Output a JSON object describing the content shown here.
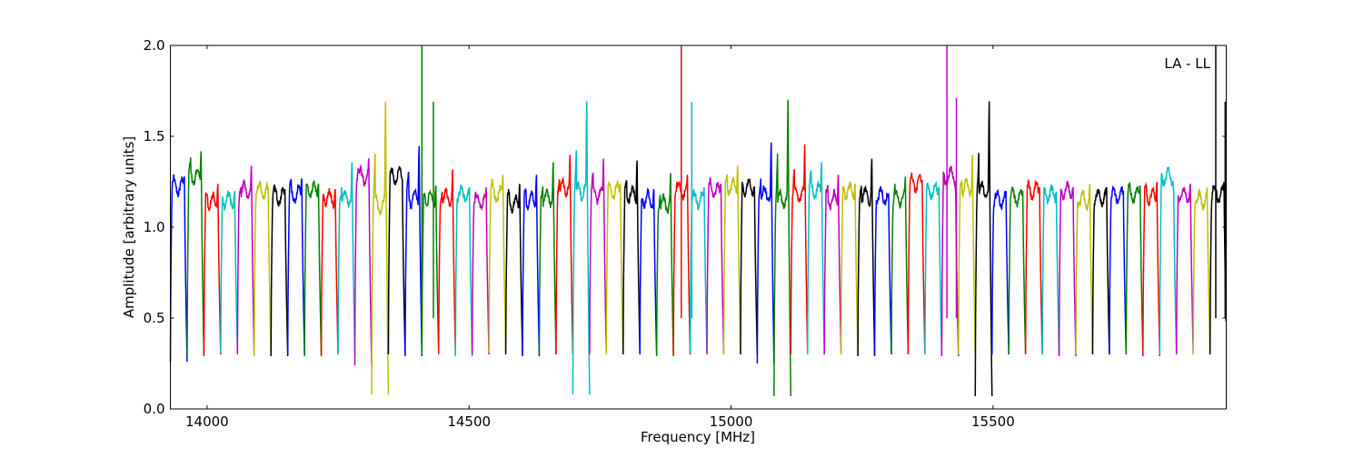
{
  "chart_data": {
    "type": "line",
    "title": "",
    "xlabel": "Frequency [MHz]",
    "ylabel": "Amplitude [arbitrary units]",
    "annotation": "LA - LL",
    "xlim": [
      13930,
      15945
    ],
    "ylim": [
      0.0,
      2.0
    ],
    "x_ticks": [
      14000,
      14500,
      15000,
      15500
    ],
    "x_tick_labels": [
      "14000",
      "14500",
      "15000",
      "15500"
    ],
    "y_ticks": [
      0.0,
      0.5,
      1.0,
      1.5,
      2.0
    ],
    "y_tick_labels": [
      "0.0",
      "0.5",
      "1.0",
      "1.5",
      "2.0"
    ],
    "grid": false,
    "legend": "none",
    "channel_width_mhz": 32,
    "channel_start_mhz": 13930,
    "color_cycle": [
      "#0000ff",
      "#008000",
      "#ff0000",
      "#00bfbf",
      "#bf00bf",
      "#bfbf00",
      "#000000"
    ],
    "channel_levels": [
      1.22,
      1.28,
      1.14,
      1.15,
      1.2,
      1.2,
      1.17,
      1.18,
      1.2,
      1.16,
      1.16,
      1.28,
      1.12,
      1.28,
      1.16,
      1.16,
      1.16,
      1.18,
      1.14,
      1.18,
      1.13,
      1.15,
      1.16,
      1.22,
      1.2,
      1.18,
      1.2,
      1.18,
      1.15,
      1.13,
      1.2,
      1.15,
      1.2,
      1.22,
      1.22,
      1.18,
      1.15,
      1.18,
      1.2,
      1.15,
      1.2,
      1.17,
      1.17,
      1.16,
      1.24,
      1.2,
      1.28,
      1.22,
      1.2,
      1.15,
      1.16,
      1.2,
      1.18,
      1.2,
      1.15,
      1.16,
      1.17,
      1.18,
      1.17,
      1.28,
      1.18,
      1.15,
      1.18
    ],
    "channel_peaks": [
      1.28,
      1.42,
      1.24,
      1.2,
      1.34,
      1.22,
      1.21,
      1.27,
      1.24,
      1.21,
      1.36,
      1.38,
      1.7,
      1.26,
      1.45,
      1.23,
      1.32,
      1.22,
      1.22,
      1.29,
      1.24,
      1.29,
      1.36,
      1.4,
      1.7,
      1.38,
      1.24,
      1.37,
      1.21,
      1.3,
      1.29,
      1.22,
      1.24,
      1.34,
      1.22,
      1.47,
      1.71,
      1.46,
      1.36,
      1.29,
      1.24,
      1.38,
      1.18,
      1.28,
      1.26,
      1.22,
      1.19,
      1.4,
      1.7,
      1.2,
      1.2,
      1.22,
      1.19,
      1.22,
      1.24,
      1.22,
      1.2,
      1.23,
      1.25,
      1.2,
      1.24,
      1.22,
      1.25
    ],
    "channel_mins": [
      0.26,
      0.29,
      0.3,
      0.31,
      0.3,
      0.29,
      0.29,
      0.3,
      0.29,
      0.3,
      0.3,
      0.24,
      0.08,
      0.3,
      0.29,
      0.3,
      0.3,
      0.29,
      0.3,
      0.31,
      0.3,
      0.29,
      0.3,
      0.3,
      0.08,
      0.3,
      0.3,
      0.3,
      0.3,
      0.29,
      0.3,
      0.31,
      0.3,
      0.3,
      0.3,
      0.25,
      0.07,
      0.3,
      0.3,
      0.3,
      0.3,
      0.29,
      0.3,
      0.3,
      0.3,
      0.3,
      0.29,
      0.3,
      0.07,
      0.3,
      0.3,
      0.3,
      0.3,
      0.29,
      0.3,
      0.3,
      0.3,
      0.3,
      0.29,
      0.3,
      0.3,
      0.3,
      0.3
    ],
    "rfi_spikes": [
      {
        "x": 14410,
        "y": 2.0
      },
      {
        "x": 14432,
        "y": 1.69
      },
      {
        "x": 14905,
        "y": 2.0
      },
      {
        "x": 14925,
        "y": 1.69
      },
      {
        "x": 15412,
        "y": 2.0
      },
      {
        "x": 15430,
        "y": 1.71
      },
      {
        "x": 15925,
        "y": 2.0
      },
      {
        "x": 15943,
        "y": 1.69
      }
    ]
  }
}
